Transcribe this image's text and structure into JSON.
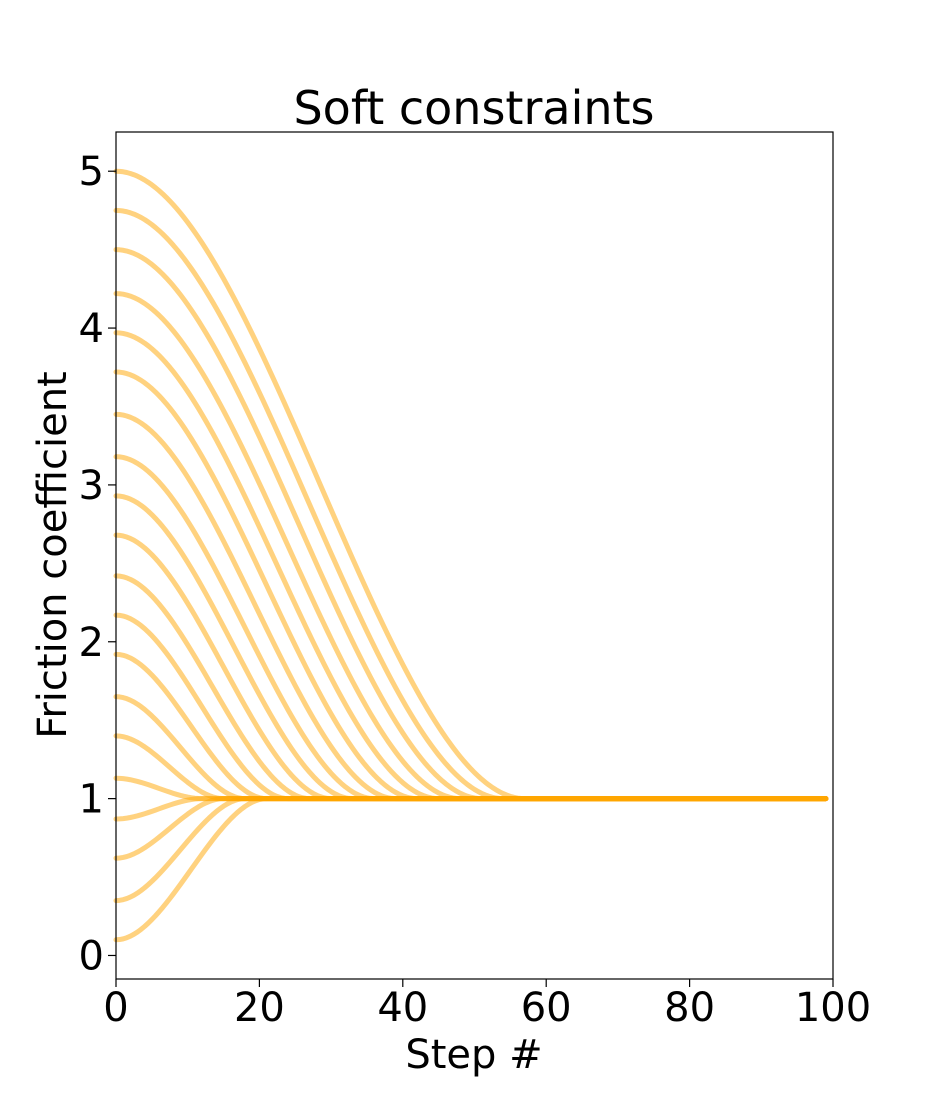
{
  "chart_data": {
    "type": "line",
    "title": "Soft constraints",
    "xlabel": "Step #",
    "ylabel": "Friction coefficient",
    "xlim": [
      0,
      100
    ],
    "ylim": [
      -0.15,
      5.25
    ],
    "xticks": [
      0,
      20,
      40,
      60,
      80,
      100
    ],
    "yticks": [
      0,
      1,
      2,
      3,
      4,
      5
    ],
    "grid": false,
    "legend": "none",
    "line_color": "#FFA500",
    "line_opacity": 0.5,
    "x_end": 99,
    "target": 1.0,
    "series": [
      {
        "start": 5.0,
        "settle_step": 57
      },
      {
        "start": 4.75,
        "settle_step": 54
      },
      {
        "start": 4.5,
        "settle_step": 51
      },
      {
        "start": 4.22,
        "settle_step": 48
      },
      {
        "start": 3.97,
        "settle_step": 45
      },
      {
        "start": 3.72,
        "settle_step": 42
      },
      {
        "start": 3.45,
        "settle_step": 39
      },
      {
        "start": 3.18,
        "settle_step": 36
      },
      {
        "start": 2.93,
        "settle_step": 33
      },
      {
        "start": 2.68,
        "settle_step": 30
      },
      {
        "start": 2.42,
        "settle_step": 27
      },
      {
        "start": 2.17,
        "settle_step": 24
      },
      {
        "start": 1.92,
        "settle_step": 21
      },
      {
        "start": 1.65,
        "settle_step": 18
      },
      {
        "start": 1.4,
        "settle_step": 15
      },
      {
        "start": 1.13,
        "settle_step": 12
      },
      {
        "start": 0.87,
        "settle_step": 12
      },
      {
        "start": 0.62,
        "settle_step": 15
      },
      {
        "start": 0.35,
        "settle_step": 18
      },
      {
        "start": 0.1,
        "settle_step": 21
      }
    ]
  }
}
